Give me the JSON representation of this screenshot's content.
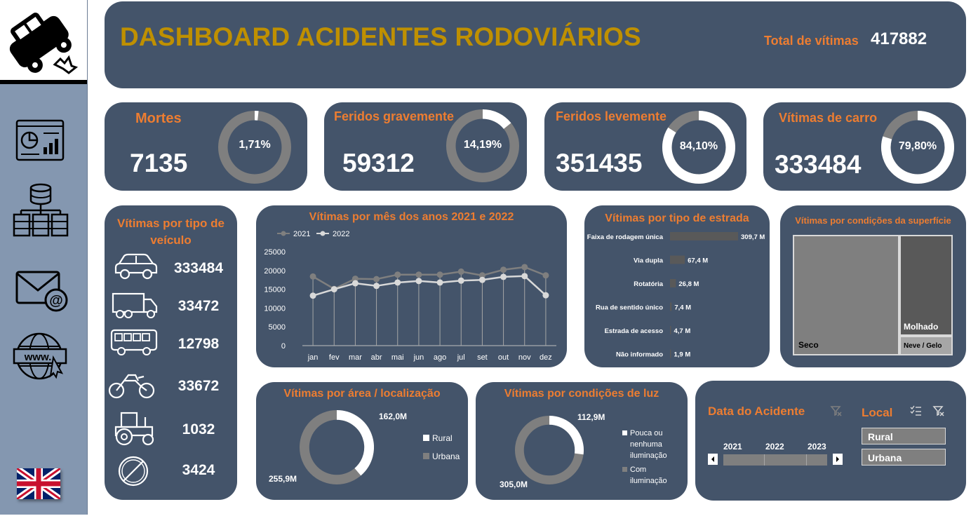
{
  "header": {
    "title": "DASHBOARD ACIDENTES RODOVIÁRIOS",
    "total_label": "Total de vítimas",
    "total_value": "417882"
  },
  "kpis": [
    {
      "label": "Mortes",
      "value": "7135",
      "percent_label": "1,71%",
      "fraction": 0.0171
    },
    {
      "label": "Feridos gravemente",
      "value": "59312",
      "percent_label": "14,19%",
      "fraction": 0.1419
    },
    {
      "label": "Feridos levemente",
      "value": "351435",
      "percent_label": "84,10%",
      "fraction": 0.841
    },
    {
      "label": "Vítimas de carro",
      "value": "333484",
      "percent_label": "79,80%",
      "fraction": 0.798
    }
  ],
  "vehicles": {
    "title": "Vítimas por tipo de veículo",
    "items": [
      {
        "icon": "car-icon",
        "value": "333484"
      },
      {
        "icon": "truck-icon",
        "value": "33472"
      },
      {
        "icon": "bus-icon",
        "value": "12798"
      },
      {
        "icon": "motorcycle-icon",
        "value": "33672"
      },
      {
        "icon": "tractor-icon",
        "value": "1032"
      },
      {
        "icon": "prohibited-icon",
        "value": "3424"
      }
    ]
  },
  "colors": {
    "card": "#44546a",
    "accent_orange": "#ed7d31",
    "title_gold": "#bf9000",
    "sidebar": "#8497b0",
    "donut_track": "#7f7f7f",
    "donut_fill": "#ffffff"
  },
  "chart_data": [
    {
      "type": "line",
      "title": "Vítimas por mês dos anos 2021 e 2022",
      "categories": [
        "jan",
        "fev",
        "mar",
        "abr",
        "mai",
        "jun",
        "ago",
        "jul",
        "set",
        "out",
        "nov",
        "dez"
      ],
      "series": [
        {
          "name": "2021",
          "values": [
            18400,
            15100,
            17800,
            17700,
            18900,
            18900,
            18900,
            19700,
            18700,
            20200,
            20900,
            18700
          ]
        },
        {
          "name": "2022",
          "values": [
            13300,
            15000,
            16600,
            15900,
            16800,
            17200,
            16800,
            17300,
            17500,
            18300,
            18500,
            13400
          ]
        }
      ],
      "yticks": [
        "0",
        "5000",
        "10000",
        "15000",
        "20000",
        "25000"
      ],
      "ylim": [
        0,
        25000
      ],
      "legend": "top-left"
    },
    {
      "type": "bar",
      "title": "Vítimas por tipo de estrada",
      "categories": [
        "Faixa de rodagem única",
        "Via dupla",
        "Rotatória",
        "Rua de sentido único",
        "Estrada de acesso",
        "Não informado"
      ],
      "values": [
        309.7,
        67.4,
        26.8,
        7.4,
        4.7,
        1.9
      ],
      "value_labels": [
        "309,7 M",
        "67,4 M",
        "26,8 M",
        "7,4 M",
        "4,7 M",
        "1,9 M"
      ],
      "orientation": "horizontal"
    },
    {
      "type": "treemap",
      "title": "Vítimas por condições da superfície",
      "categories": [
        "Seco",
        "Molhado",
        "Neve / Gelo"
      ]
    },
    {
      "type": "pie",
      "title": "Vítimas por área / localização",
      "categories": [
        "Rural",
        "Urbana"
      ],
      "values": [
        162.0,
        255.9
      ],
      "value_labels": [
        "162,0M",
        "255,9M"
      ],
      "legend": "right"
    },
    {
      "type": "pie",
      "title": "Vítimas por condições de luz",
      "categories": [
        "Pouca ou nenhuma iluminação",
        "Com iluminação"
      ],
      "values": [
        112.9,
        305.0
      ],
      "value_labels": [
        "112,9M",
        "305,0M"
      ],
      "legend": "right"
    }
  ],
  "slicers": {
    "date_title": "Data do Acidente",
    "years": [
      "2021",
      "2022",
      "2023"
    ],
    "local_title": "Local",
    "local_options": [
      "Rural",
      "Urbana"
    ]
  }
}
